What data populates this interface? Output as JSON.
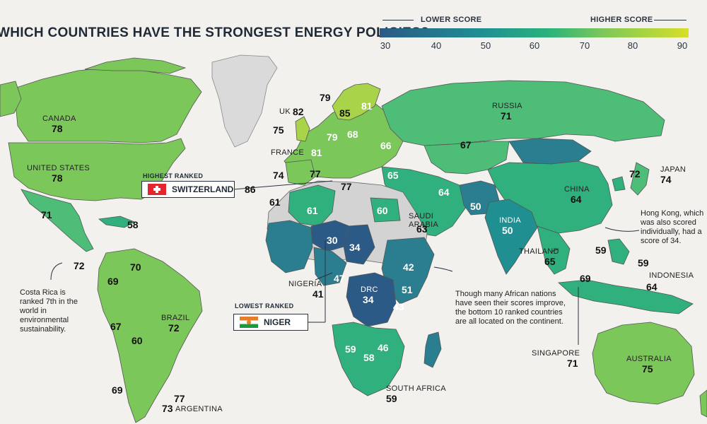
{
  "title": "WHICH COUNTRIES HAVE THE STRONGEST ENERGY POLICIES?",
  "legend": {
    "lower_label": "LOWER SCORE",
    "higher_label": "HIGHER SCORE",
    "ticks": [
      "30",
      "40",
      "50",
      "60",
      "70",
      "80",
      "90"
    ],
    "colors": {
      "low": "#2b5a86",
      "mid": "#2bb37b",
      "high": "#d7df2a"
    }
  },
  "countries": {
    "canada": {
      "name": "CANADA",
      "score": "78"
    },
    "united_states": {
      "name": "UNITED STATES",
      "score": "78"
    },
    "russia": {
      "name": "RUSSIA",
      "score": "71"
    },
    "uk": {
      "name": "UK",
      "score": "82"
    },
    "france": {
      "name": "FRANCE",
      "score": "81"
    },
    "brazil": {
      "name": "BRAZIL",
      "score": "72"
    },
    "argentina": {
      "name": "ARGENTINA",
      "score": "73"
    },
    "nigeria": {
      "name": "NIGERIA",
      "score": "41"
    },
    "drc": {
      "name": "DRC",
      "score": "34"
    },
    "south_africa": {
      "name": "SOUTH AFRICA",
      "score": "59"
    },
    "saudi_arabia": {
      "name": "SAUDI ARABIA",
      "score": "63"
    },
    "india": {
      "name": "INDIA",
      "score": "50"
    },
    "china": {
      "name": "CHINA",
      "score": "64"
    },
    "japan": {
      "name": "JAPAN",
      "score": "74"
    },
    "thailand": {
      "name": "THAILAND",
      "score": "65"
    },
    "indonesia": {
      "name": "INDONESIA",
      "score": "64"
    },
    "singapore": {
      "name": "SINGAPORE",
      "score": "71"
    },
    "australia": {
      "name": "AUSTRALIA",
      "score": "75"
    }
  },
  "extra_scores": [
    "79",
    "85",
    "81",
    "75",
    "79",
    "68",
    "66",
    "67",
    "74",
    "77",
    "77",
    "72",
    "65",
    "64",
    "50",
    "60",
    "61",
    "61",
    "30",
    "34",
    "47",
    "42",
    "51",
    "43",
    "59",
    "58",
    "46",
    "71",
    "58",
    "72",
    "70",
    "69",
    "67",
    "60",
    "69",
    "77",
    "59",
    "59",
    "69"
  ],
  "callouts": {
    "highest": {
      "title": "HIGHEST RANKED",
      "country": "SWITZERLAND",
      "score": "86"
    },
    "lowest": {
      "title": "LOWEST RANKED",
      "country": "NIGER"
    }
  },
  "notes": {
    "hong_kong": "Hong Kong, which was also scored individually, had a score of 34.",
    "africa": "Though many African nations have seen their scores improve, the bottom 10 ranked countries are all located on the continent.",
    "costa_rica": "Costa Rica is ranked 7th in the world in environmental sustainability."
  }
}
